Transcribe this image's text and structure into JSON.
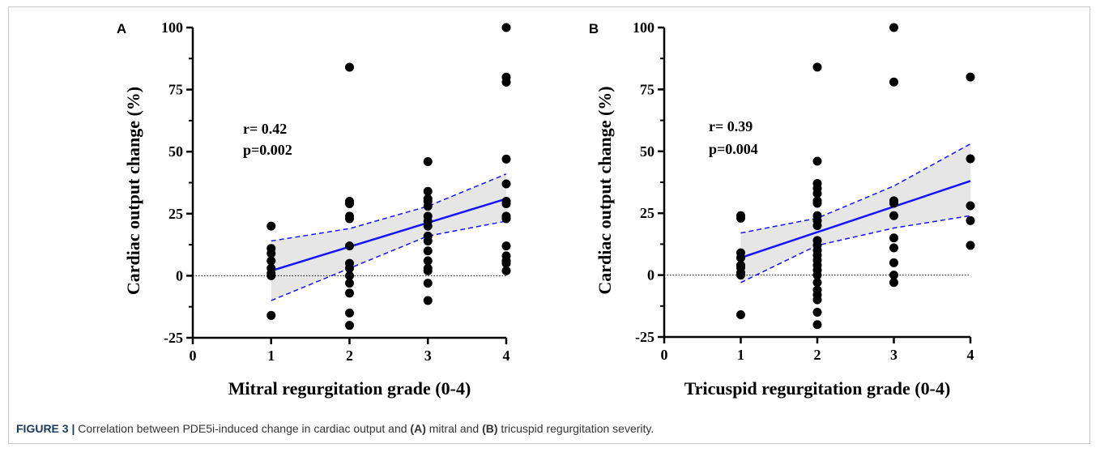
{
  "chart_data": [
    {
      "type": "scatter",
      "panel": "A",
      "xlabel": "Mitral regurgitation grade (0-4)",
      "ylabel": "Cardiac output change (%)",
      "xlim": [
        0,
        4
      ],
      "ylim": [
        -25,
        100
      ],
      "xticks": [
        "0",
        "1",
        "2",
        "3",
        "4"
      ],
      "yticks": [
        "-25",
        "0",
        "25",
        "50",
        "75",
        "100"
      ],
      "annotations": [
        "r= 0.42",
        "p=0.002"
      ],
      "points": [
        [
          1,
          20
        ],
        [
          1,
          11
        ],
        [
          1,
          9
        ],
        [
          1,
          6
        ],
        [
          1,
          3
        ],
        [
          1,
          1
        ],
        [
          1,
          0
        ],
        [
          1,
          -16
        ],
        [
          2,
          84
        ],
        [
          2,
          30
        ],
        [
          2,
          29
        ],
        [
          2,
          24
        ],
        [
          2,
          23
        ],
        [
          2,
          12
        ],
        [
          2,
          5
        ],
        [
          2,
          3
        ],
        [
          2,
          0
        ],
        [
          2,
          -3
        ],
        [
          2,
          -7
        ],
        [
          2,
          -15
        ],
        [
          2,
          -20
        ],
        [
          3,
          46
        ],
        [
          3,
          34
        ],
        [
          3,
          31
        ],
        [
          3,
          30
        ],
        [
          3,
          28
        ],
        [
          3,
          24
        ],
        [
          3,
          22
        ],
        [
          3,
          20
        ],
        [
          3,
          16
        ],
        [
          3,
          14
        ],
        [
          3,
          10
        ],
        [
          3,
          6
        ],
        [
          3,
          3
        ],
        [
          3,
          2
        ],
        [
          3,
          -3
        ],
        [
          3,
          -10
        ],
        [
          4,
          100
        ],
        [
          4,
          80
        ],
        [
          4,
          78
        ],
        [
          4,
          47
        ],
        [
          4,
          37
        ],
        [
          4,
          30
        ],
        [
          4,
          29
        ],
        [
          4,
          24
        ],
        [
          4,
          23
        ],
        [
          4,
          12
        ],
        [
          4,
          8
        ],
        [
          4,
          6
        ],
        [
          4,
          5
        ],
        [
          4,
          2
        ]
      ],
      "fit": {
        "x": [
          1,
          4
        ],
        "y": [
          2,
          31
        ]
      },
      "ci_upper": [
        [
          1,
          14
        ],
        [
          2,
          19
        ],
        [
          3,
          28
        ],
        [
          4,
          41
        ]
      ],
      "ci_lower": [
        [
          1,
          -10
        ],
        [
          2,
          3
        ],
        [
          3,
          16
        ],
        [
          4,
          22
        ]
      ],
      "reference_line": 0
    },
    {
      "type": "scatter",
      "panel": "B",
      "xlabel": "Tricuspid regurgitation grade (0-4)",
      "ylabel": "Cardiac output change (%)",
      "xlim": [
        0,
        4
      ],
      "ylim": [
        -25,
        100
      ],
      "xticks": [
        "0",
        "1",
        "2",
        "3",
        "4"
      ],
      "yticks": [
        "-25",
        "0",
        "25",
        "50",
        "75",
        "100"
      ],
      "annotations": [
        "r= 0.39",
        "p=0.004"
      ],
      "points": [
        [
          1,
          24
        ],
        [
          1,
          23
        ],
        [
          1,
          9
        ],
        [
          1,
          7
        ],
        [
          1,
          4
        ],
        [
          1,
          3
        ],
        [
          1,
          1
        ],
        [
          1,
          0
        ],
        [
          1,
          -16
        ],
        [
          2,
          84
        ],
        [
          2,
          46
        ],
        [
          2,
          37
        ],
        [
          2,
          35
        ],
        [
          2,
          33
        ],
        [
          2,
          30
        ],
        [
          2,
          29
        ],
        [
          2,
          24
        ],
        [
          2,
          22
        ],
        [
          2,
          20
        ],
        [
          2,
          14
        ],
        [
          2,
          12
        ],
        [
          2,
          10
        ],
        [
          2,
          8
        ],
        [
          2,
          6
        ],
        [
          2,
          4
        ],
        [
          2,
          2
        ],
        [
          2,
          0
        ],
        [
          2,
          -3
        ],
        [
          2,
          -6
        ],
        [
          2,
          -8
        ],
        [
          2,
          -10
        ],
        [
          2,
          -15
        ],
        [
          2,
          -20
        ],
        [
          3,
          100
        ],
        [
          3,
          78
        ],
        [
          3,
          30
        ],
        [
          3,
          29
        ],
        [
          3,
          24
        ],
        [
          3,
          15
        ],
        [
          3,
          11
        ],
        [
          3,
          5
        ],
        [
          3,
          0
        ],
        [
          3,
          -3
        ],
        [
          4,
          80
        ],
        [
          4,
          47
        ],
        [
          4,
          28
        ],
        [
          4,
          22
        ],
        [
          4,
          12
        ]
      ],
      "fit": {
        "x": [
          1,
          4
        ],
        "y": [
          7,
          38
        ]
      },
      "ci_upper": [
        [
          1,
          17
        ],
        [
          2,
          23
        ],
        [
          3,
          36
        ],
        [
          4,
          53
        ]
      ],
      "ci_lower": [
        [
          1,
          -3
        ],
        [
          2,
          12
        ],
        [
          3,
          19
        ],
        [
          4,
          24
        ]
      ],
      "reference_line": 0
    }
  ],
  "colors": {
    "fit_line": "#1414ff",
    "ci_band": "#e6e6e6",
    "points": "#000000",
    "caption_label": "#1a3a5e"
  },
  "caption": {
    "label": "FIGURE 3 |",
    "text_1": " Correlation between PDE5i-induced change in cardiac output and ",
    "panel_a": "(A)",
    "text_2": " mitral and ",
    "panel_b": "(B)",
    "text_3": " tricuspid regurgitation severity."
  }
}
